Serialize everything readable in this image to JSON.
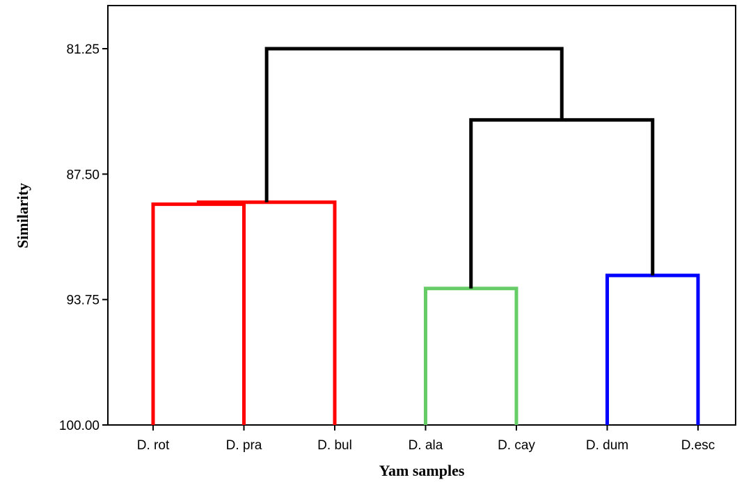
{
  "chart_data": {
    "type": "dendrogram",
    "xlabel": "Yam samples",
    "ylabel": "Similarity",
    "ylim": [
      81.25,
      100.0
    ],
    "y_inverted": true,
    "yticks": [
      "81.25",
      "87.50",
      "93.75",
      "100.00"
    ],
    "ytick_values": [
      81.25,
      87.5,
      93.75,
      100.0
    ],
    "leaves": [
      "D. rot",
      "D. pra",
      "D. bul",
      "D. ala",
      "D. cay",
      "D. dum",
      "D.esc"
    ],
    "merges": [
      {
        "left": [
          "D. rot"
        ],
        "right": [
          "D. pra"
        ],
        "similarity": 89.0,
        "color": "#ff0000"
      },
      {
        "left": [
          "D. rot",
          "D. pra"
        ],
        "right": [
          "D. bul"
        ],
        "similarity": 88.9,
        "color": "#ff0000"
      },
      {
        "left": [
          "D. ala"
        ],
        "right": [
          "D. cay"
        ],
        "similarity": 93.2,
        "color": "#66cc66"
      },
      {
        "left": [
          "D. dum"
        ],
        "right": [
          "D.esc"
        ],
        "similarity": 92.55,
        "color": "#0000ff"
      },
      {
        "left": [
          "D. ala",
          "D. cay"
        ],
        "right": [
          "D. dum",
          "D.esc"
        ],
        "similarity": 84.8,
        "color": "#000000"
      },
      {
        "left": [
          "D. rot",
          "D. pra",
          "D. bul"
        ],
        "right": [
          "D. ala",
          "D. cay",
          "D. dum",
          "D.esc"
        ],
        "similarity": 81.25,
        "color": "#000000"
      }
    ],
    "grid": false,
    "legend": "none"
  }
}
